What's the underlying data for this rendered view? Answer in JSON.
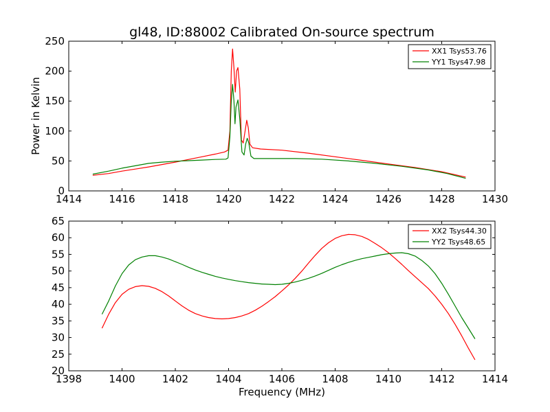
{
  "chart_data": [
    {
      "type": "line",
      "title": "gl48, ID:88002 Calibrated On-source spectrum",
      "xlabel": "",
      "ylabel": "Power in Kelvin",
      "xlim": [
        1414,
        1430
      ],
      "ylim": [
        0,
        250
      ],
      "x_ticks": [
        "1414",
        "1416",
        "1418",
        "1420",
        "1422",
        "1424",
        "1426",
        "1428",
        "1430"
      ],
      "y_ticks": [
        "0",
        "50",
        "100",
        "150",
        "200",
        "250"
      ],
      "legend_position": "top-right",
      "grid": false,
      "series": [
        {
          "name": "XX1 Tsys53.76",
          "color": "#ff0000",
          "points": [
            [
              1414.9,
              26
            ],
            [
              1415.5,
              29
            ],
            [
              1416.0,
              33
            ],
            [
              1416.5,
              36.5
            ],
            [
              1417.0,
              40
            ],
            [
              1417.5,
              44
            ],
            [
              1418.0,
              48
            ],
            [
              1418.5,
              52.5
            ],
            [
              1419.0,
              57
            ],
            [
              1419.5,
              61.5
            ],
            [
              1419.85,
              65
            ],
            [
              1419.98,
              68
            ],
            [
              1420.05,
              100
            ],
            [
              1420.1,
              200
            ],
            [
              1420.15,
              237
            ],
            [
              1420.2,
              205
            ],
            [
              1420.25,
              165
            ],
            [
              1420.3,
              200
            ],
            [
              1420.35,
              206
            ],
            [
              1420.42,
              170
            ],
            [
              1420.48,
              85
            ],
            [
              1420.55,
              80
            ],
            [
              1420.62,
              100
            ],
            [
              1420.68,
              118
            ],
            [
              1420.74,
              105
            ],
            [
              1420.8,
              78
            ],
            [
              1420.9,
              72
            ],
            [
              1421.2,
              70
            ],
            [
              1422.0,
              68
            ],
            [
              1423.0,
              63
            ],
            [
              1424.0,
              57
            ],
            [
              1425.0,
              51
            ],
            [
              1426.0,
              45
            ],
            [
              1427.0,
              39
            ],
            [
              1428.0,
              32
            ],
            [
              1428.9,
              23
            ]
          ]
        },
        {
          "name": "YY1 Tsys47.98",
          "color": "#008000",
          "points": [
            [
              1414.9,
              28
            ],
            [
              1415.5,
              33
            ],
            [
              1416.0,
              38
            ],
            [
              1416.5,
              42
            ],
            [
              1417.0,
              46
            ],
            [
              1417.5,
              48
            ],
            [
              1418.0,
              49.5
            ],
            [
              1418.5,
              50.5
            ],
            [
              1419.0,
              51.5
            ],
            [
              1419.5,
              52.5
            ],
            [
              1419.9,
              53
            ],
            [
              1419.98,
              55
            ],
            [
              1420.05,
              90
            ],
            [
              1420.1,
              150
            ],
            [
              1420.15,
              178
            ],
            [
              1420.2,
              150
            ],
            [
              1420.24,
              112
            ],
            [
              1420.28,
              140
            ],
            [
              1420.35,
              152
            ],
            [
              1420.42,
              120
            ],
            [
              1420.5,
              65
            ],
            [
              1420.58,
              60
            ],
            [
              1420.64,
              78
            ],
            [
              1420.7,
              88
            ],
            [
              1420.76,
              80
            ],
            [
              1420.84,
              58
            ],
            [
              1420.95,
              54
            ],
            [
              1421.5,
              54
            ],
            [
              1422.5,
              54
            ],
            [
              1423.5,
              53
            ],
            [
              1424.5,
              50
            ],
            [
              1425.5,
              46
            ],
            [
              1426.5,
              41
            ],
            [
              1427.5,
              35
            ],
            [
              1428.2,
              29
            ],
            [
              1428.9,
              21
            ]
          ]
        }
      ]
    },
    {
      "type": "line",
      "title": "",
      "xlabel": "Frequency (MHz)",
      "ylabel": "",
      "xlim": [
        1398,
        1414
      ],
      "ylim": [
        20,
        65
      ],
      "x_ticks": [
        "1398",
        "1400",
        "1402",
        "1404",
        "1406",
        "1408",
        "1410",
        "1412",
        "1414"
      ],
      "y_ticks": [
        "20",
        "25",
        "30",
        "35",
        "40",
        "45",
        "50",
        "55",
        "60",
        "65"
      ],
      "legend_position": "top-right",
      "grid": false,
      "series": [
        {
          "name": "XX2 Tsys44.30",
          "color": "#ff0000",
          "points": [
            [
              1399.25,
              32.8
            ],
            [
              1399.5,
              37
            ],
            [
              1399.75,
              40.5
            ],
            [
              1400.0,
              43
            ],
            [
              1400.25,
              44.5
            ],
            [
              1400.5,
              45.3
            ],
            [
              1400.75,
              45.6
            ],
            [
              1401.0,
              45.4
            ],
            [
              1401.25,
              44.8
            ],
            [
              1401.5,
              43.8
            ],
            [
              1401.75,
              42.5
            ],
            [
              1402.0,
              41
            ],
            [
              1402.25,
              39.5
            ],
            [
              1402.5,
              38.2
            ],
            [
              1402.75,
              37.2
            ],
            [
              1403.0,
              36.5
            ],
            [
              1403.25,
              36
            ],
            [
              1403.5,
              35.7
            ],
            [
              1403.75,
              35.6
            ],
            [
              1404.0,
              35.7
            ],
            [
              1404.25,
              36
            ],
            [
              1404.5,
              36.5
            ],
            [
              1404.75,
              37.2
            ],
            [
              1405.0,
              38.2
            ],
            [
              1405.25,
              39.4
            ],
            [
              1405.5,
              40.8
            ],
            [
              1405.75,
              42.3
            ],
            [
              1406.0,
              44
            ],
            [
              1406.25,
              45.8
            ],
            [
              1406.5,
              47.8
            ],
            [
              1406.75,
              50
            ],
            [
              1407.0,
              52.4
            ],
            [
              1407.25,
              54.7
            ],
            [
              1407.5,
              56.8
            ],
            [
              1407.75,
              58.5
            ],
            [
              1408.0,
              59.8
            ],
            [
              1408.25,
              60.6
            ],
            [
              1408.5,
              61
            ],
            [
              1408.75,
              60.9
            ],
            [
              1409.0,
              60.4
            ],
            [
              1409.25,
              59.5
            ],
            [
              1409.5,
              58.3
            ],
            [
              1409.75,
              57
            ],
            [
              1410.0,
              55.5
            ],
            [
              1410.25,
              53.8
            ],
            [
              1410.5,
              52
            ],
            [
              1410.75,
              50.1
            ],
            [
              1411.0,
              48.3
            ],
            [
              1411.25,
              46.5
            ],
            [
              1411.5,
              44.7
            ],
            [
              1411.75,
              42.5
            ],
            [
              1412.0,
              40
            ],
            [
              1412.25,
              37.2
            ],
            [
              1412.5,
              34
            ],
            [
              1412.75,
              30.5
            ],
            [
              1413.0,
              26.8
            ],
            [
              1413.25,
              23.3
            ]
          ]
        },
        {
          "name": "YY2 Tsys48.65",
          "color": "#008000",
          "points": [
            [
              1399.25,
              37
            ],
            [
              1399.5,
              41
            ],
            [
              1399.75,
              45.5
            ],
            [
              1400.0,
              49.2
            ],
            [
              1400.25,
              51.8
            ],
            [
              1400.5,
              53.4
            ],
            [
              1400.75,
              54.2
            ],
            [
              1401.0,
              54.6
            ],
            [
              1401.25,
              54.6
            ],
            [
              1401.5,
              54.2
            ],
            [
              1401.75,
              53.6
            ],
            [
              1402.0,
              52.8
            ],
            [
              1402.25,
              52
            ],
            [
              1402.5,
              51.1
            ],
            [
              1402.75,
              50.3
            ],
            [
              1403.0,
              49.6
            ],
            [
              1403.25,
              49
            ],
            [
              1403.5,
              48.4
            ],
            [
              1403.75,
              47.9
            ],
            [
              1404.0,
              47.5
            ],
            [
              1404.25,
              47.1
            ],
            [
              1404.5,
              46.8
            ],
            [
              1404.75,
              46.5
            ],
            [
              1405.0,
              46.3
            ],
            [
              1405.25,
              46.1
            ],
            [
              1405.5,
              46
            ],
            [
              1405.75,
              45.9
            ],
            [
              1406.0,
              46
            ],
            [
              1406.25,
              46.3
            ],
            [
              1406.5,
              46.7
            ],
            [
              1406.75,
              47.2
            ],
            [
              1407.0,
              47.8
            ],
            [
              1407.25,
              48.5
            ],
            [
              1407.5,
              49.3
            ],
            [
              1407.75,
              50.2
            ],
            [
              1408.0,
              51.1
            ],
            [
              1408.25,
              51.9
            ],
            [
              1408.5,
              52.6
            ],
            [
              1408.75,
              53.2
            ],
            [
              1409.0,
              53.7
            ],
            [
              1409.25,
              54.1
            ],
            [
              1409.5,
              54.5
            ],
            [
              1409.75,
              54.9
            ],
            [
              1410.0,
              55.2
            ],
            [
              1410.25,
              55.4
            ],
            [
              1410.5,
              55.5
            ],
            [
              1410.75,
              55.2
            ],
            [
              1411.0,
              54.5
            ],
            [
              1411.25,
              53.2
            ],
            [
              1411.5,
              51.5
            ],
            [
              1411.75,
              49.2
            ],
            [
              1412.0,
              46.3
            ],
            [
              1412.25,
              43
            ],
            [
              1412.5,
              39.5
            ],
            [
              1412.75,
              36
            ],
            [
              1413.0,
              32.8
            ],
            [
              1413.25,
              29.6
            ]
          ]
        }
      ]
    }
  ]
}
